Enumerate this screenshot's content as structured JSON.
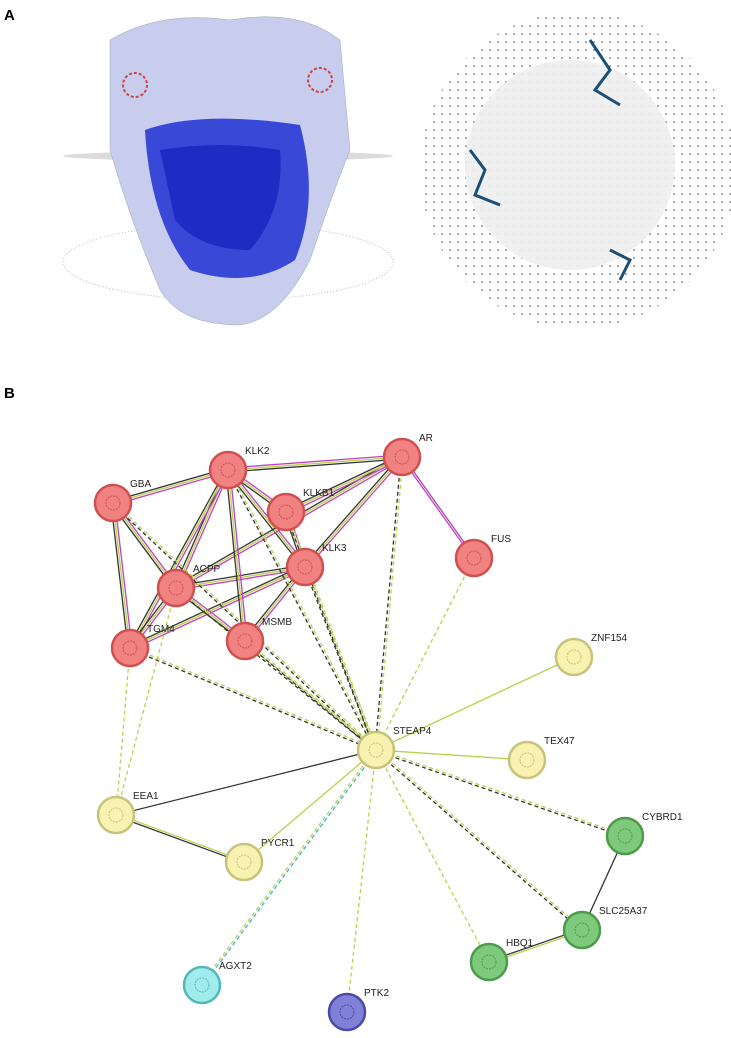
{
  "panel_a": {
    "label": "A"
  },
  "panel_b": {
    "label": "B",
    "nodes": [
      {
        "label": "KLK2"
      },
      {
        "label": "AR"
      },
      {
        "label": "GBA"
      },
      {
        "label": "KLKB1"
      },
      {
        "label": "KLK3"
      },
      {
        "label": "FUS"
      },
      {
        "label": "ACPP"
      },
      {
        "label": "TGM4"
      },
      {
        "label": "MSMB"
      },
      {
        "label": "ZNF154"
      },
      {
        "label": "STEAP4"
      },
      {
        "label": "TEX47"
      },
      {
        "label": "EEA1"
      },
      {
        "label": "PYCR1"
      },
      {
        "label": "CYBRD1"
      },
      {
        "label": "SLC25A37"
      },
      {
        "label": "HBQ1"
      },
      {
        "label": "AGXT2"
      },
      {
        "label": "PTK2"
      }
    ]
  }
}
